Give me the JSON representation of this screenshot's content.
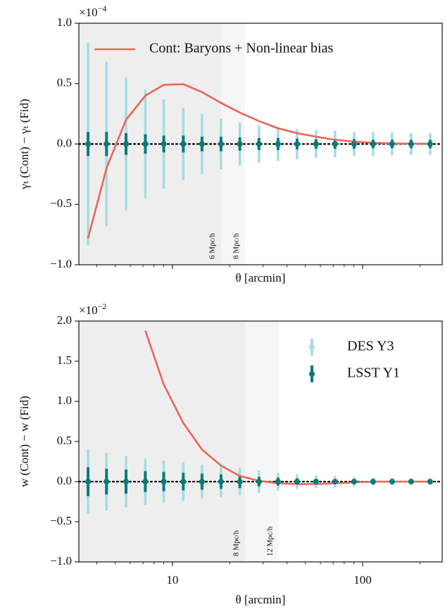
{
  "chart_data": [
    {
      "type": "errorbar",
      "xscale": "log",
      "xlabel": "θ [arcmin]",
      "ylabel": "γₜ (Cont) − γₜ (Fid)",
      "offset_text": "×10",
      "offset_exponent": "−4",
      "xlim": [
        3.22,
        262
      ],
      "xticks": [
        10,
        100
      ],
      "xticklabels": false,
      "xminorticks": [
        4,
        5,
        6,
        7,
        8,
        9,
        20,
        30,
        40,
        50,
        60,
        70,
        80,
        90,
        200
      ],
      "ylim": [
        -1.0,
        1.0
      ],
      "yticks": [
        {
          "value": -1.0,
          "label": "−1.0"
        },
        {
          "value": -0.5,
          "label": "−0.5"
        },
        {
          "value": 0.0,
          "label": "0.0"
        },
        {
          "value": 0.5,
          "label": "0.5"
        },
        {
          "value": 1.0,
          "label": "1.0"
        }
      ],
      "hline": 0,
      "cuts": [
        {
          "value": 18.0,
          "label": "6 Mpc/h",
          "color": "#eeeeee"
        },
        {
          "value": 24.1,
          "label": "8 Mpc/h",
          "color": "#f6f6f6"
        }
      ],
      "legend_loc": "upper left",
      "x": [
        3.6,
        4.5,
        5.7,
        7.2,
        9.0,
        11.4,
        14.3,
        18.0,
        22.6,
        28.5,
        35.9,
        45.2,
        56.9,
        71.6,
        90.2,
        113.5,
        142.9,
        179.9,
        226.5
      ],
      "series": [
        {
          "name": "DES Y3",
          "type": "errorbar",
          "color": "#a6dce2",
          "legend": false,
          "values": [
            0,
            0,
            0,
            0,
            0,
            0,
            0,
            0,
            0,
            0,
            0,
            0,
            0,
            0,
            0,
            0,
            0,
            0,
            0
          ],
          "errors": [
            0.84,
            0.68,
            0.55,
            0.45,
            0.37,
            0.3,
            0.25,
            0.21,
            0.18,
            0.155,
            0.14,
            0.125,
            0.115,
            0.11,
            0.1,
            0.097,
            0.095,
            0.09,
            0.09
          ]
        },
        {
          "name": "LSST Y1",
          "type": "errorbar",
          "color": "#077a7a",
          "legend": false,
          "values": [
            0,
            0,
            0,
            0,
            0,
            0,
            0,
            0,
            0,
            0,
            0,
            0,
            0,
            0,
            0,
            0,
            0,
            0,
            0
          ],
          "errors": [
            0.1,
            0.1,
            0.09,
            0.08,
            0.07,
            0.07,
            0.06,
            0.06,
            0.055,
            0.05,
            0.05,
            0.045,
            0.04,
            0.04,
            0.04,
            0.035,
            0.035,
            0.035,
            0.035
          ]
        },
        {
          "name": "Cont: Baryons + Non-linear bias",
          "type": "line",
          "color": "#e8665a",
          "legend": true,
          "values": [
            -0.78,
            -0.2,
            0.2,
            0.4,
            0.49,
            0.495,
            0.43,
            0.34,
            0.26,
            0.19,
            0.13,
            0.09,
            0.06,
            0.035,
            0.02,
            0.01,
            0.005,
            0.003,
            0.002
          ]
        }
      ]
    },
    {
      "type": "errorbar",
      "xscale": "log",
      "xlabel": "θ [arcmin]",
      "ylabel": "w (Cont) − w (Fid)",
      "offset_text": "×10",
      "offset_exponent": "−2",
      "xlim": [
        3.22,
        262
      ],
      "xticks": [
        10,
        100
      ],
      "xticklabels": true,
      "xminorticks": [
        4,
        5,
        6,
        7,
        8,
        9,
        20,
        30,
        40,
        50,
        60,
        70,
        80,
        90,
        200
      ],
      "ylim": [
        -1.0,
        2.0
      ],
      "yticks": [
        {
          "value": -1.0,
          "label": "−1.0"
        },
        {
          "value": -0.5,
          "label": "−0.5"
        },
        {
          "value": 0.0,
          "label": "0.0"
        },
        {
          "value": 0.5,
          "label": "0.5"
        },
        {
          "value": 1.0,
          "label": "1.0"
        },
        {
          "value": 1.5,
          "label": "1.5"
        },
        {
          "value": 2.0,
          "label": "2.0"
        }
      ],
      "hline": 0,
      "cuts": [
        {
          "value": 24.1,
          "label": "8 Mpc/h",
          "color": "#eeeeee"
        },
        {
          "value": 36.2,
          "label": "12 Mpc/h",
          "color": "#f6f6f6"
        }
      ],
      "legend_loc": "upper right",
      "x": [
        3.6,
        4.5,
        5.7,
        7.2,
        9.0,
        11.4,
        14.3,
        18.0,
        22.6,
        28.5,
        35.9,
        45.2,
        56.9,
        71.6,
        90.2,
        113.5,
        142.9,
        179.9,
        226.5
      ],
      "series": [
        {
          "name": "DES Y3",
          "type": "errorbar",
          "color": "#a6dce2",
          "legend": true,
          "values": [
            0,
            0,
            0,
            0,
            0,
            0,
            0,
            0,
            0,
            0,
            0,
            0,
            0,
            0,
            0,
            0,
            0,
            0,
            0
          ],
          "errors": [
            0.4,
            0.36,
            0.32,
            0.29,
            0.26,
            0.24,
            0.21,
            0.19,
            0.17,
            0.14,
            0.11,
            0.09,
            0.08,
            0.07,
            0.06,
            0.05,
            0.045,
            0.04,
            0.04
          ]
        },
        {
          "name": "LSST Y1",
          "type": "errorbar",
          "color": "#077a7a",
          "legend": true,
          "values": [
            0,
            0,
            0,
            0,
            0,
            0,
            0,
            0,
            0,
            0,
            0,
            0,
            0,
            0,
            0,
            0,
            0,
            0,
            0
          ],
          "errors": [
            0.18,
            0.16,
            0.15,
            0.13,
            0.12,
            0.11,
            0.1,
            0.09,
            0.08,
            0.06,
            0.05,
            0.04,
            0.035,
            0.03,
            0.025,
            0.02,
            0.02,
            0.02,
            0.015
          ]
        },
        {
          "name": "Cont: Baryons + Non-linear bias",
          "type": "line",
          "color": "#e8665a",
          "legend": false,
          "values": [
            null,
            null,
            null,
            1.88,
            1.21,
            0.73,
            0.4,
            0.2,
            0.07,
            0.01,
            -0.02,
            -0.03,
            -0.03,
            -0.02,
            -0.01,
            0,
            0,
            0,
            0
          ]
        }
      ]
    }
  ]
}
